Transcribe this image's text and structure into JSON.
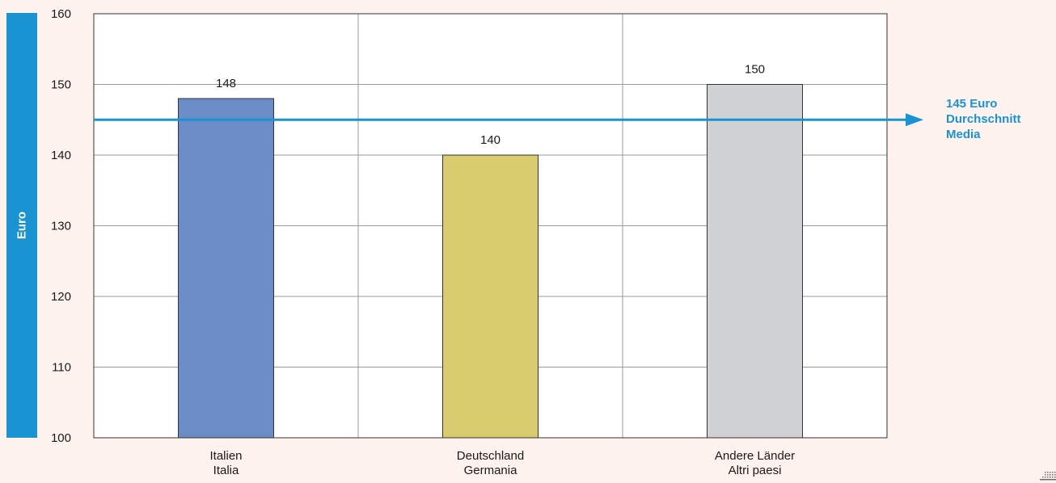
{
  "chart_data": {
    "type": "bar",
    "ylabel": "Euro",
    "ylim": [
      100,
      160
    ],
    "yticks": [
      100,
      110,
      120,
      130,
      140,
      150,
      160
    ],
    "grid": true,
    "categories": [
      [
        "Italien",
        "Italia"
      ],
      [
        "Deutschland",
        "Germania"
      ],
      [
        "Andere Länder",
        "Altri paesi"
      ]
    ],
    "values": [
      148,
      140,
      150
    ],
    "data_labels": [
      "148",
      "140",
      "150"
    ],
    "bar_colors": [
      "#6b8cc6",
      "#d8cc6f",
      "#d0d1d3"
    ],
    "reference_line": {
      "value": 145,
      "label_lines": [
        "145 Euro",
        "Durchschnitt",
        "Media"
      ],
      "color": "#1a93d3"
    }
  }
}
